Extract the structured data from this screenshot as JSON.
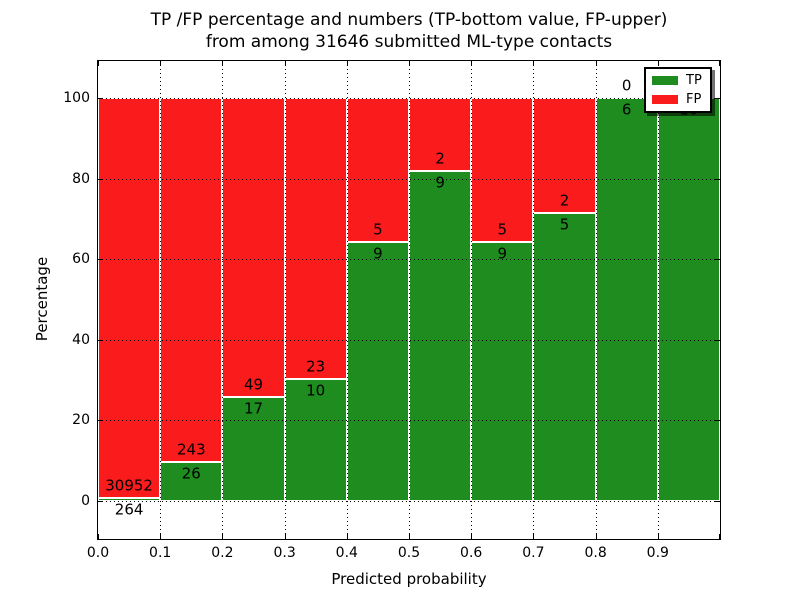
{
  "title": {
    "line1": "TP /FP percentage and numbers (TP-bottom value, FP-upper)",
    "line2": "from among 31646 submitted ML-type contacts"
  },
  "axes": {
    "xlabel": "Predicted probability",
    "ylabel": "Percentage",
    "x_tick_labels": [
      "0.0",
      "0.1",
      "0.2",
      "0.3",
      "0.4",
      "0.5",
      "0.6",
      "0.7",
      "0.8",
      "0.9"
    ],
    "y_tick_labels": [
      "0",
      "20",
      "40",
      "60",
      "80",
      "100"
    ],
    "y_tick_values": [
      0,
      20,
      40,
      60,
      80,
      100
    ]
  },
  "legend": {
    "items": [
      {
        "label": "TP",
        "color": "#1e8c1e"
      },
      {
        "label": "FP",
        "color": "#fa1c1c"
      }
    ]
  },
  "colors": {
    "tp_green": "#1e8c1e",
    "fp_red": "#fa1c1c",
    "bar_edge": "#ffffff",
    "grid": "#000000"
  },
  "chart_data": {
    "type": "bar",
    "stacked": true,
    "normalized_to_percent": true,
    "title": "TP /FP percentage and numbers (TP-bottom value, FP-upper)\nfrom among 31646 submitted ML-type contacts",
    "xlabel": "Predicted probability",
    "ylabel": "Percentage",
    "total_contacts": 31646,
    "bin_edges": [
      0.0,
      0.1,
      0.2,
      0.3,
      0.4,
      0.5,
      0.6,
      0.7,
      0.8,
      0.9,
      1.0
    ],
    "series": [
      {
        "name": "TP",
        "color": "#1e8c1e",
        "position": "bottom",
        "counts": [
          264,
          26,
          17,
          10,
          9,
          9,
          9,
          5,
          6,
          10
        ]
      },
      {
        "name": "FP",
        "color": "#fa1c1c",
        "position": "top",
        "counts": [
          30952,
          243,
          49,
          23,
          5,
          2,
          5,
          2,
          0,
          0
        ]
      }
    ],
    "tp_percent_by_bin": [
      0.85,
      9.67,
      25.76,
      30.3,
      64.29,
      81.82,
      64.29,
      71.43,
      100.0,
      100.0
    ],
    "xlim": [
      0.0,
      1.0
    ],
    "ylim": [
      -10,
      110
    ],
    "grid": true,
    "grid_style": "dotted",
    "legend_position": "upper right"
  }
}
